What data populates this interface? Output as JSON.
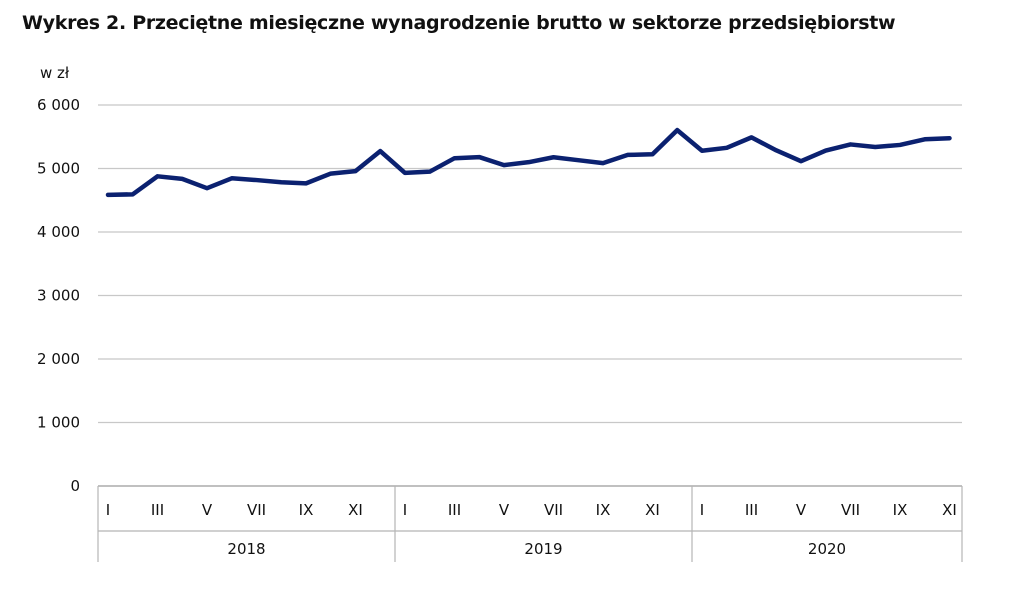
{
  "chart_data": {
    "type": "line",
    "title": "Wykres 2. Przeciętne miesięczne wynagrodzenie brutto w sektorze przedsiębiorstw",
    "ylabel": "w zł",
    "xlabel": "",
    "ylim": [
      0,
      6000
    ],
    "yticks": [
      0,
      1000,
      2000,
      3000,
      4000,
      5000,
      6000
    ],
    "ytick_labels": [
      "0",
      "1 000",
      "2 000",
      "3 000",
      "4 000",
      "5 000",
      "6 000"
    ],
    "grid": true,
    "month_tick_labels": [
      "I",
      "III",
      "V",
      "VII",
      "IX",
      "XI"
    ],
    "years": [
      "2018",
      "2019",
      "2020"
    ],
    "series": [
      {
        "name": "Przeciętne miesięczne wynagrodzenie brutto",
        "color": "#0b2170",
        "values": [
          4585,
          4593,
          4877,
          4836,
          4690,
          4846,
          4818,
          4784,
          4766,
          4920,
          4958,
          5274,
          4931,
          4950,
          5162,
          5180,
          5053,
          5100,
          5177,
          5131,
          5085,
          5214,
          5224,
          5604,
          5280,
          5326,
          5490,
          5286,
          5115,
          5283,
          5379,
          5338,
          5371,
          5460,
          5477
        ]
      }
    ]
  }
}
